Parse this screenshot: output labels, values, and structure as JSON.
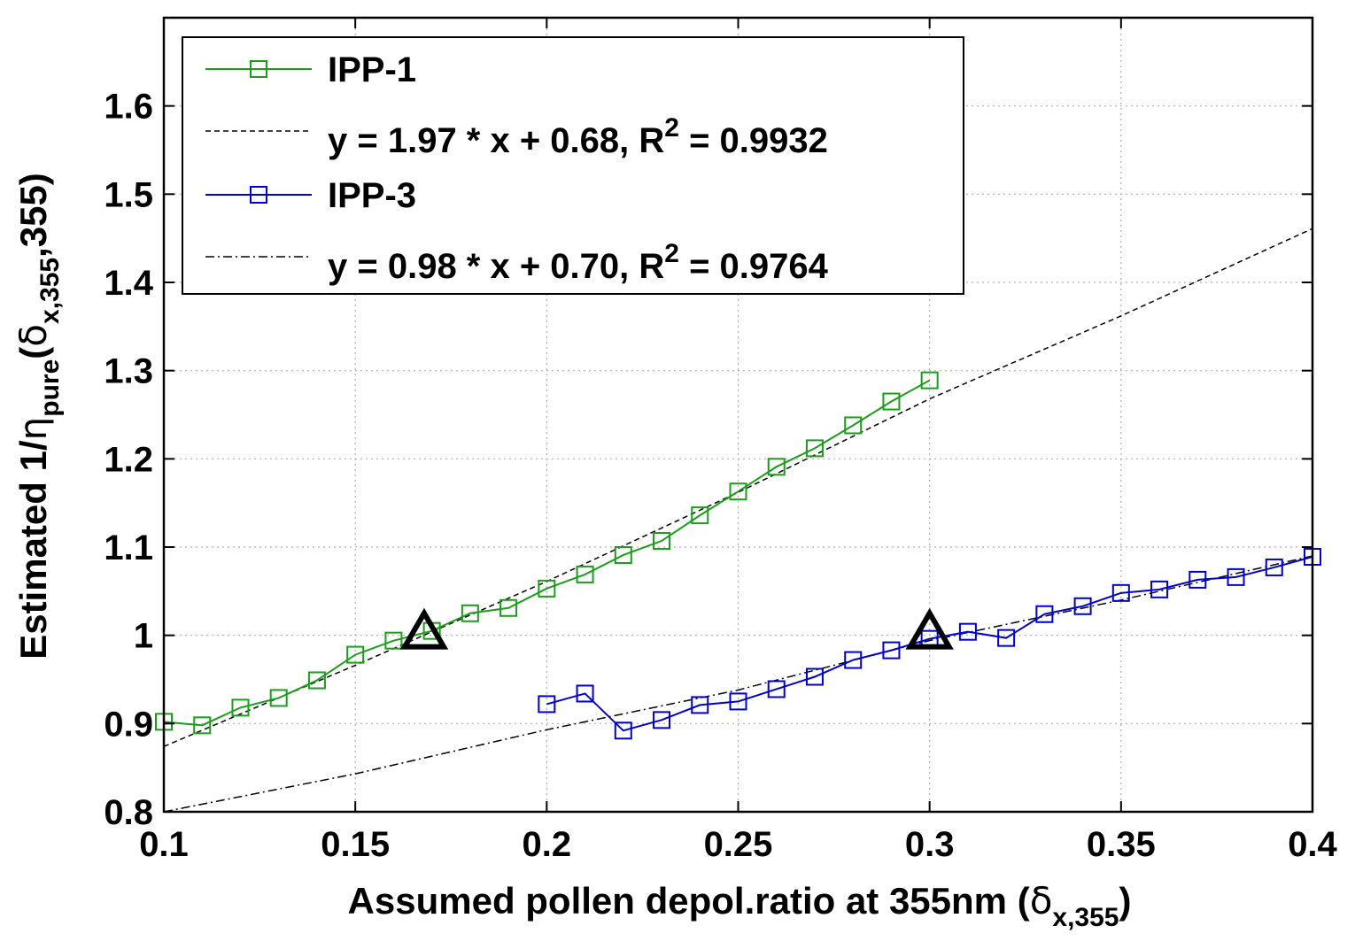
{
  "chart_data": {
    "type": "line",
    "xlabel": {
      "text": "Assumed pollen depol.ratio at 355nm (",
      "delta": "δ",
      "sub": "x,355",
      "close": ")"
    },
    "ylabel": {
      "pre": "Estimated 1/",
      "eta": "η",
      "eta_sub": "pure",
      "open": "(",
      "delta": "δ",
      "delta_sub": "x,355",
      "tail": ",355)"
    },
    "xlim": [
      0.1,
      0.4
    ],
    "ylim": [
      0.8,
      1.7
    ],
    "x_ticks": [
      "0.1",
      "0.15",
      "0.2",
      "0.25",
      "0.3",
      "0.35",
      "0.4"
    ],
    "y_ticks": [
      "0.8",
      "0.9",
      "1",
      "1.1",
      "1.2",
      "1.3",
      "1.4",
      "1.5",
      "1.6"
    ],
    "grid": true,
    "legend_position": "top-left",
    "series": [
      {
        "name": "IPP-1",
        "color": "#1a9e1a",
        "marker": "square",
        "x": [
          0.1,
          0.11,
          0.12,
          0.13,
          0.14,
          0.15,
          0.16,
          0.17,
          0.18,
          0.19,
          0.2,
          0.21,
          0.22,
          0.23,
          0.24,
          0.25,
          0.26,
          0.27,
          0.28,
          0.29,
          0.3
        ],
        "y": [
          0.902,
          0.898,
          0.918,
          0.929,
          0.949,
          0.978,
          0.994,
          1.005,
          1.025,
          1.031,
          1.053,
          1.069,
          1.091,
          1.107,
          1.136,
          1.163,
          1.191,
          1.212,
          1.238,
          1.265,
          1.289
        ]
      },
      {
        "name": "IPP-3",
        "color": "#0000cc",
        "marker": "square",
        "x": [
          0.2,
          0.21,
          0.22,
          0.23,
          0.24,
          0.25,
          0.26,
          0.27,
          0.28,
          0.29,
          0.3,
          0.31,
          0.32,
          0.33,
          0.34,
          0.35,
          0.36,
          0.37,
          0.38,
          0.39,
          0.4
        ],
        "y": [
          0.922,
          0.934,
          0.892,
          0.904,
          0.921,
          0.925,
          0.939,
          0.953,
          0.972,
          0.983,
          0.996,
          1.004,
          0.997,
          1.024,
          1.033,
          1.048,
          1.052,
          1.063,
          1.066,
          1.077,
          1.089
        ]
      }
    ],
    "fits": [
      {
        "label_main": "y = 1.97 * x + 0.68, R",
        "label_sup": "2",
        "label_tail": " = 0.9932",
        "style": "dashed",
        "color": "#000000",
        "x": [
          0.1,
          0.15,
          0.2,
          0.25,
          0.3,
          0.35,
          0.4
        ],
        "y": [
          0.874,
          0.966,
          1.061,
          1.162,
          1.268,
          1.362,
          1.461
        ]
      },
      {
        "label_main": "y = 0.98 * x + 0.70, R",
        "label_sup": "2",
        "label_tail": " = 0.9764",
        "style": "dashdot",
        "color": "#000000",
        "x": [
          0.1,
          0.15,
          0.2,
          0.25,
          0.3,
          0.35,
          0.4
        ],
        "y": [
          0.8,
          0.843,
          0.893,
          0.938,
          0.994,
          1.04,
          1.09
        ]
      }
    ],
    "annotations": [
      {
        "marker": "triangle",
        "x": 0.168,
        "y": 1.003
      },
      {
        "marker": "triangle",
        "x": 0.3,
        "y": 1.003
      }
    ]
  }
}
